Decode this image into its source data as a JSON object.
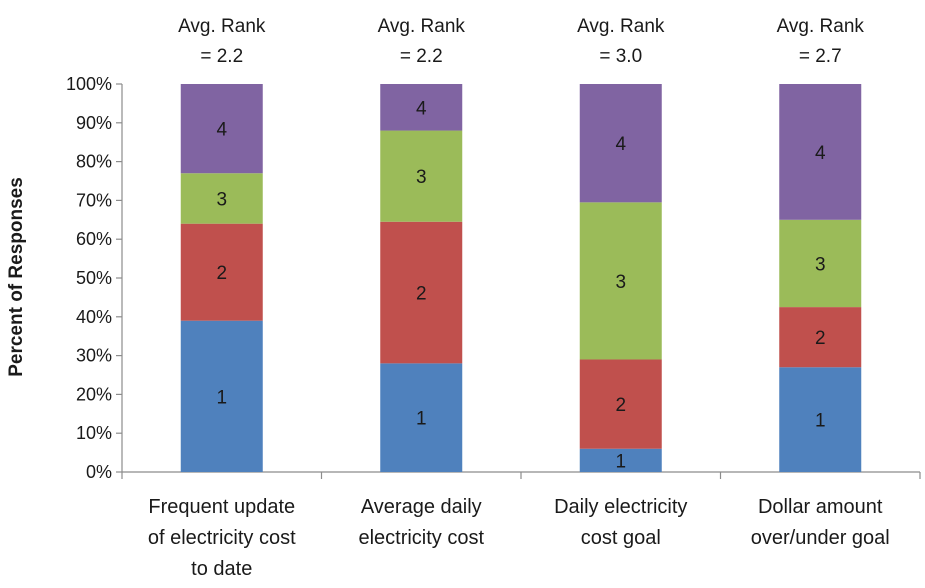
{
  "chart_data": {
    "type": "bar",
    "stacked": true,
    "ylabel": "Percent of Responses",
    "ylim": [
      0,
      100
    ],
    "y_ticks": [
      "0%",
      "10%",
      "20%",
      "30%",
      "40%",
      "50%",
      "60%",
      "70%",
      "80%",
      "90%",
      "100%"
    ],
    "grid": false,
    "legend": "none",
    "categories": [
      [
        "Frequent update",
        "of electricity cost",
        "to date"
      ],
      [
        "Average daily",
        "electricity cost"
      ],
      [
        "Daily electricity",
        "cost goal"
      ],
      [
        "Dollar amount",
        "over/under goal"
      ]
    ],
    "annotations": [
      [
        "Avg. Rank",
        "= 2.2"
      ],
      [
        "Avg. Rank",
        "= 2.2"
      ],
      [
        "Avg. Rank",
        "= 3.0"
      ],
      [
        "Avg. Rank",
        "= 2.7"
      ]
    ],
    "series": [
      {
        "label": "1",
        "color": "#4f81bd",
        "values": [
          39,
          28,
          6,
          27
        ]
      },
      {
        "label": "2",
        "color": "#c0504d",
        "values": [
          25,
          36.5,
          23,
          15.5
        ]
      },
      {
        "label": "3",
        "color": "#9bbb59",
        "values": [
          13,
          23.5,
          40.5,
          22.5
        ]
      },
      {
        "label": "4",
        "color": "#8064a2",
        "values": [
          23,
          12,
          30.5,
          35
        ]
      }
    ]
  }
}
